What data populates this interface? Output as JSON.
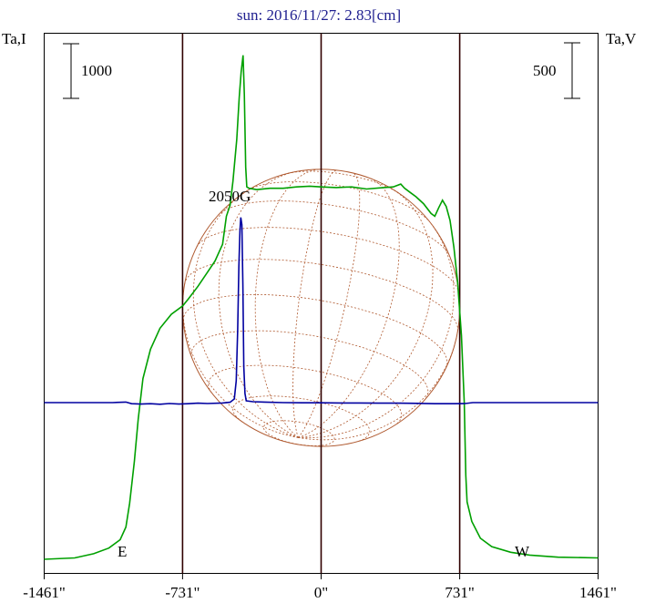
{
  "chart_data": {
    "type": "line",
    "title": "sun: 2016/11/27: 2.83[cm]",
    "left_axis_label": "Ta,I",
    "right_axis_label": "Ta,V",
    "left_scale_bar": "1000",
    "right_scale_bar": "500",
    "x_tick_labels": [
      "-1461\"",
      "-731\"",
      "0\"",
      "731\"",
      "1461\""
    ],
    "x_ticks": [
      -1461,
      -731,
      0,
      731,
      1461
    ],
    "xlim": [
      -1461,
      1461
    ],
    "solar_limb": 731,
    "east_label": "E",
    "west_label": "W",
    "annotation": "2050G",
    "colors": {
      "intensity": "#00a000",
      "polarization": "#0000a0",
      "disk": "#b05a30",
      "axes": "#300000",
      "title": "#202090"
    },
    "series": [
      {
        "color": "#00a000",
        "axis": "left",
        "points": [
          [
            -1461,
            0
          ],
          [
            -1300,
            10
          ],
          [
            -1200,
            40
          ],
          [
            -1120,
            80
          ],
          [
            -1060,
            140
          ],
          [
            -1030,
            230
          ],
          [
            -1010,
            400
          ],
          [
            -985,
            700
          ],
          [
            -965,
            1000
          ],
          [
            -940,
            1290
          ],
          [
            -900,
            1500
          ],
          [
            -850,
            1650
          ],
          [
            -790,
            1750
          ],
          [
            -730,
            1810
          ],
          [
            -700,
            1860
          ],
          [
            -650,
            1950
          ],
          [
            -600,
            2050
          ],
          [
            -560,
            2130
          ],
          [
            -520,
            2250
          ],
          [
            -500,
            2450
          ],
          [
            -480,
            2530
          ],
          [
            -465,
            2700
          ],
          [
            -445,
            3000
          ],
          [
            -432,
            3300
          ],
          [
            -422,
            3480
          ],
          [
            -412,
            3600
          ],
          [
            -405,
            3320
          ],
          [
            -398,
            2800
          ],
          [
            -392,
            2660
          ],
          [
            -380,
            2650
          ],
          [
            -340,
            2640
          ],
          [
            -270,
            2650
          ],
          [
            -200,
            2650
          ],
          [
            -130,
            2660
          ],
          [
            -60,
            2665
          ],
          [
            0,
            2660
          ],
          [
            80,
            2655
          ],
          [
            160,
            2660
          ],
          [
            240,
            2645
          ],
          [
            330,
            2655
          ],
          [
            380,
            2660
          ],
          [
            420,
            2680
          ],
          [
            440,
            2650
          ],
          [
            470,
            2620
          ],
          [
            500,
            2590
          ],
          [
            540,
            2540
          ],
          [
            580,
            2470
          ],
          [
            600,
            2450
          ],
          [
            620,
            2510
          ],
          [
            640,
            2565
          ],
          [
            660,
            2520
          ],
          [
            680,
            2420
          ],
          [
            700,
            2230
          ],
          [
            720,
            1980
          ],
          [
            740,
            1600
          ],
          [
            755,
            1120
          ],
          [
            763,
            600
          ],
          [
            770,
            410
          ],
          [
            795,
            270
          ],
          [
            840,
            150
          ],
          [
            900,
            90
          ],
          [
            1000,
            50
          ],
          [
            1100,
            30
          ],
          [
            1250,
            15
          ],
          [
            1461,
            10
          ]
        ]
      },
      {
        "color": "#0000a0",
        "axis": "right",
        "points": [
          [
            -1461,
            0
          ],
          [
            -1100,
            0
          ],
          [
            -1030,
            3
          ],
          [
            -1000,
            -6
          ],
          [
            -950,
            -8
          ],
          [
            -900,
            -6
          ],
          [
            -850,
            -9
          ],
          [
            -800,
            -5
          ],
          [
            -750,
            -8
          ],
          [
            -700,
            -6
          ],
          [
            -650,
            -3
          ],
          [
            -600,
            -5
          ],
          [
            -520,
            -2
          ],
          [
            -480,
            2
          ],
          [
            -458,
            20
          ],
          [
            -448,
            120
          ],
          [
            -440,
            400
          ],
          [
            -434,
            750
          ],
          [
            -428,
            950
          ],
          [
            -424,
            1020
          ],
          [
            -418,
            980
          ],
          [
            -413,
            650
          ],
          [
            -408,
            200
          ],
          [
            -402,
            50
          ],
          [
            -395,
            10
          ],
          [
            -360,
            5
          ],
          [
            -300,
            3
          ],
          [
            -200,
            0
          ],
          [
            -100,
            -1
          ],
          [
            0,
            -1
          ],
          [
            100,
            -2
          ],
          [
            200,
            -2
          ],
          [
            300,
            -3
          ],
          [
            400,
            -3
          ],
          [
            500,
            -4
          ],
          [
            600,
            -6
          ],
          [
            700,
            -6
          ],
          [
            760,
            -5
          ],
          [
            800,
            0
          ],
          [
            900,
            0
          ],
          [
            1100,
            0
          ],
          [
            1461,
            0
          ]
        ]
      }
    ]
  }
}
